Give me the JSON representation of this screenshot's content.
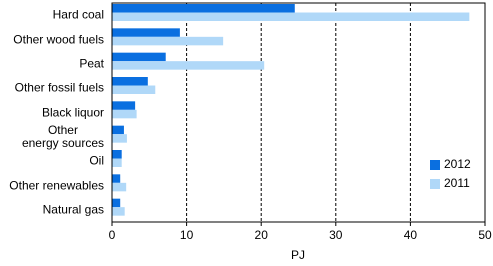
{
  "chart_data": {
    "type": "hbar",
    "categories": [
      "Hard coal",
      "Other wood fuels",
      "Peat",
      "Other fossil fuels",
      "Black liquor",
      "Other\nenergy sources",
      "Oil",
      "Other renewables",
      "Natural gas"
    ],
    "series": [
      {
        "name": "2012",
        "color": "#0a6fe0",
        "values": [
          24.5,
          9.1,
          7.2,
          4.8,
          3.1,
          1.6,
          1.3,
          1.1,
          1.1
        ]
      },
      {
        "name": "2011",
        "color": "#b0d8f8",
        "values": [
          47.9,
          14.9,
          20.4,
          5.8,
          3.3,
          2.0,
          1.3,
          1.9,
          1.7
        ]
      }
    ],
    "xlabel": "PJ",
    "xlim": [
      0,
      50
    ],
    "xticks": [
      0,
      10,
      20,
      30,
      40,
      50
    ],
    "grid": true
  }
}
